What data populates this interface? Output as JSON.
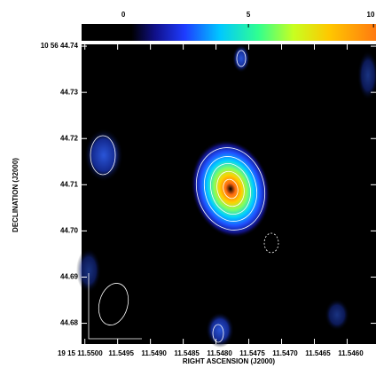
{
  "chart_data": {
    "type": "image",
    "xlabel": "RIGHT ASCENSION (J2000)",
    "ylabel": "DECLINATION (J2000)",
    "xlim": [
      11.55005,
      11.54556
    ],
    "ylim": [
      44.6755,
      44.7404
    ],
    "xticks": [
      {
        "value": 11.55,
        "label": "19 15 11.5500"
      },
      11.5495,
      {
        "value": 11.549,
        "label": "11.5490"
      },
      11.5485,
      {
        "value": 11.548,
        "label": "11.5480"
      },
      11.5475,
      {
        "value": 11.547,
        "label": "11.5470"
      },
      11.5465,
      {
        "value": 11.546,
        "label": "11.5460"
      }
    ],
    "yticks": [
      {
        "value": 44.74,
        "label": "10 56 44.74"
      },
      44.73,
      44.72,
      44.71,
      {
        "value": 44.7,
        "label": "44.70"
      },
      44.69,
      44.68
    ],
    "clim": [
      -1.67,
      10.1
    ],
    "cticks": [
      0,
      5,
      10
    ]
  }
}
